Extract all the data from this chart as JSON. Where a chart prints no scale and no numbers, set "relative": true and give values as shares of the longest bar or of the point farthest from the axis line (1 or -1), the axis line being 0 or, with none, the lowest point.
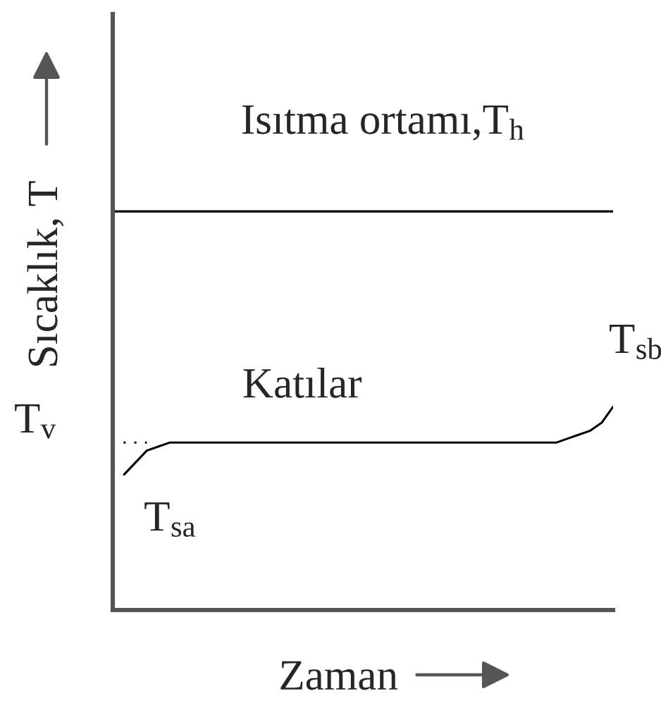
{
  "chart_data": {
    "type": "line",
    "relative": true,
    "line_style": "solid",
    "xlabel": "Zaman",
    "ylabel": "Sıcaklık, T",
    "categories": [
      null,
      null,
      null,
      null,
      null,
      null,
      null,
      null,
      null,
      null,
      null,
      null,
      null,
      null,
      null,
      null,
      null,
      null,
      null,
      null,
      null,
      null,
      null,
      null,
      null,
      null,
      null,
      null,
      null,
      null,
      null,
      null,
      null,
      null,
      null,
      null,
      null,
      null,
      null,
      null,
      null,
      null,
      null,
      null,
      null
    ],
    "series": [
      {
        "name": "Isıtma ortamı,T$_{h}$",
        "color": "#000000",
        "values": [
          1,
          1,
          1,
          1,
          1,
          1,
          1,
          1,
          1,
          1,
          1,
          1,
          1,
          1,
          1,
          1,
          1,
          1,
          1,
          1,
          1,
          1,
          1,
          1,
          1,
          1,
          1,
          1,
          1,
          1,
          1,
          1,
          1,
          1,
          1,
          1,
          1,
          1,
          1,
          1,
          1,
          1,
          1,
          1,
          1
        ]
      },
      {
        "name": "Katılar",
        "color": "#000000",
        "values": [
          null,
          0.34,
          0.37,
          0.4,
          0.41,
          0.42,
          0.42,
          0.42,
          0.42,
          0.42,
          0.42,
          0.42,
          0.42,
          0.42,
          0.42,
          0.42,
          0.42,
          0.42,
          0.42,
          0.42,
          0.42,
          0.42,
          0.42,
          0.42,
          0.42,
          0.42,
          0.42,
          0.42,
          0.42,
          0.42,
          0.42,
          0.42,
          0.42,
          0.42,
          0.42,
          0.42,
          0.42,
          0.42,
          0.42,
          0.42,
          0.43,
          0.44,
          0.45,
          0.47,
          0.51
        ]
      },
      {
        "color": "#000000",
        "line_style": "dotted",
        "values": [
          0.42,
          0.42,
          0.42,
          0.42,
          null,
          null,
          null,
          null,
          null,
          null,
          null,
          null,
          null,
          null,
          null,
          null,
          null,
          null,
          null,
          null,
          null,
          null,
          null,
          null,
          null,
          null,
          null,
          null,
          null,
          null,
          null,
          null,
          null,
          null,
          null,
          null,
          null,
          null,
          null,
          null,
          null,
          null,
          null,
          null,
          null
        ]
      }
    ],
    "annotations": [
      "T$_{v}$",
      "T$_{sa}$",
      "T$_{sb}$"
    ]
  }
}
